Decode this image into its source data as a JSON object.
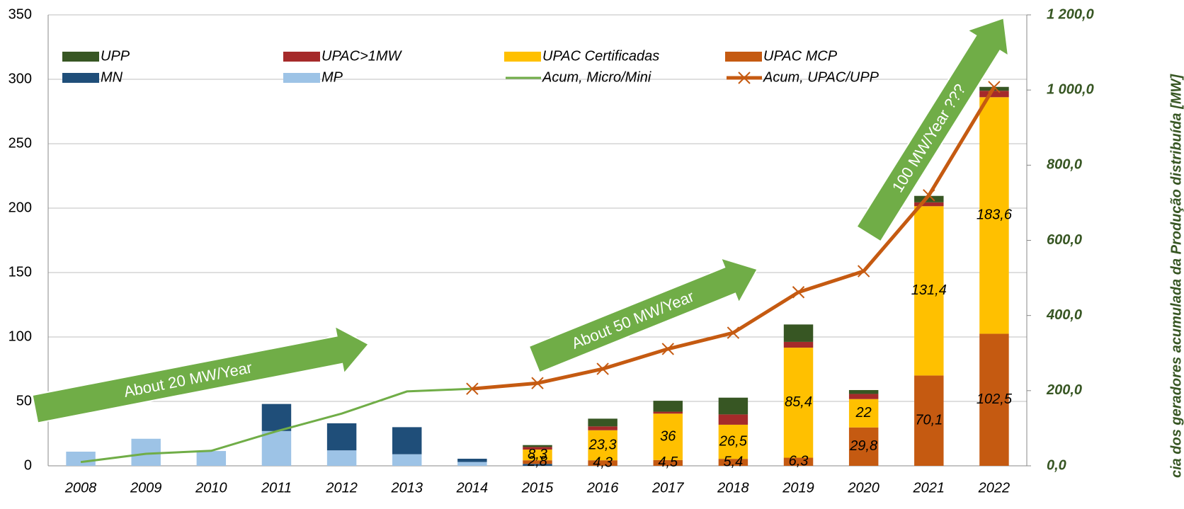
{
  "chart_data": {
    "type": "bar",
    "stacked": true,
    "y2_label": "cia dos geradores acumulada da Produção distribuída [MW]",
    "annotations": [
      "About 20 MW/Year",
      "About 50 MW/Year",
      "100  MW/Year ???"
    ],
    "categories": [
      "2008",
      "2009",
      "2010",
      "2011",
      "2012",
      "2013",
      "2014",
      "2015",
      "2016",
      "2017",
      "2018",
      "2019",
      "2020",
      "2021",
      "2022"
    ],
    "series": [
      {
        "name": "UPP",
        "type": "bar",
        "color": "#375623",
        "values": [
          null,
          null,
          null,
          null,
          null,
          null,
          null,
          1.5,
          6,
          8.5,
          13,
          13.5,
          3,
          5,
          3
        ]
      },
      {
        "name": "UPAC>1MW",
        "type": "bar",
        "color": "#a52a2a",
        "values": [
          null,
          null,
          null,
          null,
          null,
          null,
          null,
          2,
          3,
          1.5,
          8,
          4.5,
          4,
          3,
          5
        ]
      },
      {
        "name": "UPAC Certificadas",
        "type": "bar",
        "color": "#ffc000",
        "values": [
          null,
          null,
          null,
          null,
          null,
          null,
          null,
          8.3,
          23.3,
          36,
          26.5,
          85.4,
          22,
          131.4,
          183.6
        ],
        "value_labels": [
          null,
          null,
          null,
          null,
          null,
          null,
          null,
          "8,3",
          "23,3",
          "36",
          "26,5",
          "85,4",
          "22",
          "131,4",
          "183,6"
        ]
      },
      {
        "name": "UPAC MCP",
        "type": "bar",
        "color": "#c55a11",
        "values": [
          null,
          null,
          null,
          null,
          null,
          null,
          null,
          2.8,
          4.3,
          4.5,
          5.4,
          6.3,
          29.8,
          70.1,
          102.5
        ],
        "value_labels": [
          null,
          null,
          null,
          null,
          null,
          null,
          null,
          "2,8",
          "4,3",
          "4,5",
          "5,4",
          "6,3",
          "29,8",
          "70,1",
          "102,5"
        ]
      },
      {
        "name": "MN",
        "type": "bar",
        "color": "#1f4e79",
        "values": [
          0,
          0,
          0,
          21,
          21,
          21,
          2.5,
          1.5,
          null,
          null,
          null,
          null,
          null,
          null,
          null
        ]
      },
      {
        "name": "MP",
        "type": "bar",
        "color": "#9dc3e6",
        "values": [
          11,
          21,
          11.5,
          27,
          12,
          9,
          3,
          null,
          null,
          null,
          null,
          null,
          null,
          null,
          null
        ]
      },
      {
        "name": "Acum, Micro/Mini",
        "type": "line",
        "axis": "y2",
        "color": "#70ad47",
        "values": [
          10,
          32,
          40,
          92,
          139,
          198,
          205,
          null,
          null,
          null,
          null,
          null,
          null,
          null,
          null
        ]
      },
      {
        "name": "Acum, UPAC/UPP",
        "type": "line",
        "axis": "y2",
        "marker": "x",
        "color": "#c55a11",
        "values": [
          null,
          null,
          null,
          null,
          null,
          null,
          205,
          220,
          258,
          311,
          354,
          462,
          518,
          720,
          1008
        ]
      }
    ],
    "ylim": [
      0,
      350
    ],
    "yticks": [
      0,
      50,
      100,
      150,
      200,
      250,
      300,
      350
    ],
    "y2lim": [
      0,
      1200
    ],
    "y2ticks": [
      {
        "value": 0,
        "label": "0,0"
      },
      {
        "value": 200,
        "label": "200,0"
      },
      {
        "value": 400,
        "label": "400,0"
      },
      {
        "value": 600,
        "label": "600,0"
      },
      {
        "value": 800,
        "label": "800,0"
      },
      {
        "value": 1000,
        "label": "1 000,0"
      },
      {
        "value": 1200,
        "label": "1 200,0"
      }
    ],
    "grid": true
  }
}
